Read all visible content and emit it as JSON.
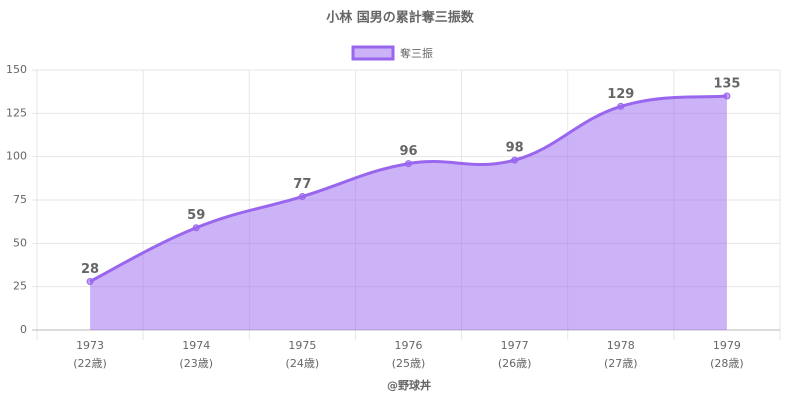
{
  "chart_data": {
    "type": "area",
    "title": "小林 国男の累計奪三振数",
    "categories": [
      [
        "1973",
        "(22歳)"
      ],
      [
        "1974",
        "(23歳)"
      ],
      [
        "1975",
        "(24歳)"
      ],
      [
        "1976",
        "(25歳)"
      ],
      [
        "1977",
        "(26歳)"
      ],
      [
        "1978",
        "(27歳)"
      ],
      [
        "1979",
        "(28歳)"
      ]
    ],
    "series": [
      {
        "name": "奪三振",
        "color": "#9966ee",
        "values": [
          28,
          59,
          77,
          96,
          98,
          129,
          135
        ]
      }
    ],
    "xlabel": "@野球丼",
    "ylim": [
      0,
      150
    ],
    "yticks": [
      0,
      25,
      50,
      75,
      100,
      125,
      150
    ],
    "grid": true,
    "legend": "top"
  }
}
